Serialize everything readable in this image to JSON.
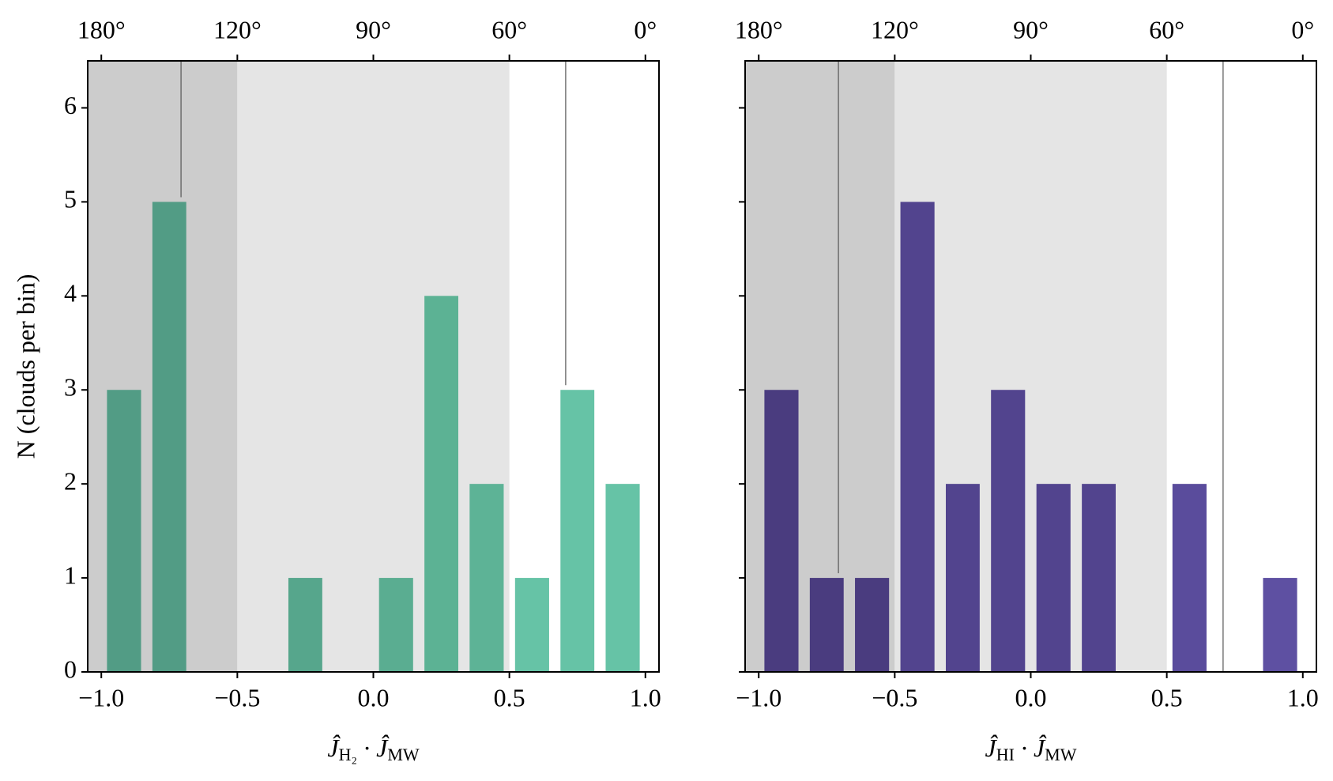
{
  "chart_data": [
    {
      "type": "histogram",
      "bins": [
        -1,
        -0.833,
        -0.667,
        -0.5,
        -0.333,
        -0.167,
        0,
        0.167,
        0.333,
        0.5,
        0.667,
        0.833,
        1
      ],
      "counts": [
        3,
        5,
        0,
        0,
        1,
        0,
        1,
        4,
        2,
        1,
        3,
        2
      ],
      "colors": [
        "#529c85",
        "#529c85",
        "#54a089",
        "#54a089",
        "#56a68c",
        "#58aa8f",
        "#5aad91",
        "#5cb294",
        "#5db396",
        "#66c3a6",
        "#66c3a6",
        "#66c3a6"
      ],
      "xlabel": [
        "Ĵ",
        "H₂",
        " · Ĵ",
        "MW"
      ],
      "ylabel": "N (clouds per bin)",
      "xlim": [
        -1.05,
        1.05
      ],
      "ylim": [
        0,
        6.5
      ],
      "xticks": [
        {
          "value": -1,
          "label": "−1.0"
        },
        {
          "value": -0.5,
          "label": "−0.5"
        },
        {
          "value": 0,
          "label": "0.0"
        },
        {
          "value": 0.5,
          "label": "0.5"
        },
        {
          "value": 1,
          "label": "1.0"
        }
      ],
      "top_xticks": [
        {
          "value": -1,
          "label": "180°"
        },
        {
          "value": -0.5,
          "label": "120°"
        },
        {
          "value": 0,
          "label": "90°"
        },
        {
          "value": 0.5,
          "label": "60°"
        },
        {
          "value": 1,
          "label": "0°"
        }
      ],
      "yticks": [
        0,
        1,
        2,
        3,
        4,
        5,
        6
      ],
      "ytick_labels": true,
      "shaded_regions": [
        {
          "range": [
            -1.05,
            -0.5
          ],
          "color": "#cccccc"
        },
        {
          "range": [
            -0.5,
            0.5
          ],
          "color": "#e5e5e5"
        }
      ],
      "vlines": [
        {
          "x": -0.707,
          "ymin": 5.05,
          "ymax": 6.5
        },
        {
          "x": 0.707,
          "ymin": 3.05,
          "ymax": 6.5
        }
      ]
    },
    {
      "type": "histogram",
      "bins": [
        -1,
        -0.833,
        -0.667,
        -0.5,
        -0.333,
        -0.167,
        0,
        0.167,
        0.333,
        0.5,
        0.667,
        0.833,
        1
      ],
      "counts": [
        3,
        1,
        1,
        5,
        2,
        3,
        2,
        2,
        0,
        2,
        0,
        1
      ],
      "colors": [
        "#4a3c7f",
        "#4a3c7f",
        "#4a3c7f",
        "#52448e",
        "#52448e",
        "#52448e",
        "#52448e",
        "#52448e",
        "#584a98",
        "#5a4c9c",
        "#5e50a2",
        "#5e50a2"
      ],
      "xlabel": [
        "Ĵ",
        "HI",
        " · Ĵ",
        "MW"
      ],
      "xlim": [
        -1.05,
        1.05
      ],
      "ylim": [
        0,
        6.5
      ],
      "xticks": [
        {
          "value": -1,
          "label": "−1.0"
        },
        {
          "value": -0.5,
          "label": "−0.5"
        },
        {
          "value": 0,
          "label": "0.0"
        },
        {
          "value": 0.5,
          "label": "0.5"
        },
        {
          "value": 1,
          "label": "1.0"
        }
      ],
      "top_xticks": [
        {
          "value": -1,
          "label": "180°"
        },
        {
          "value": -0.5,
          "label": "120°"
        },
        {
          "value": 0,
          "label": "90°"
        },
        {
          "value": 0.5,
          "label": "60°"
        },
        {
          "value": 1,
          "label": "0°"
        }
      ],
      "yticks": [
        0,
        1,
        2,
        3,
        4,
        5,
        6
      ],
      "ytick_labels": false,
      "shaded_regions": [
        {
          "range": [
            -1.05,
            -0.5
          ],
          "color": "#cccccc"
        },
        {
          "range": [
            -0.5,
            0.5
          ],
          "color": "#e5e5e5"
        }
      ],
      "vlines": [
        {
          "x": -0.707,
          "ymin": 1.05,
          "ymax": 6.5
        },
        {
          "x": 0.707,
          "ymin": 0,
          "ymax": 6.5
        }
      ]
    }
  ]
}
